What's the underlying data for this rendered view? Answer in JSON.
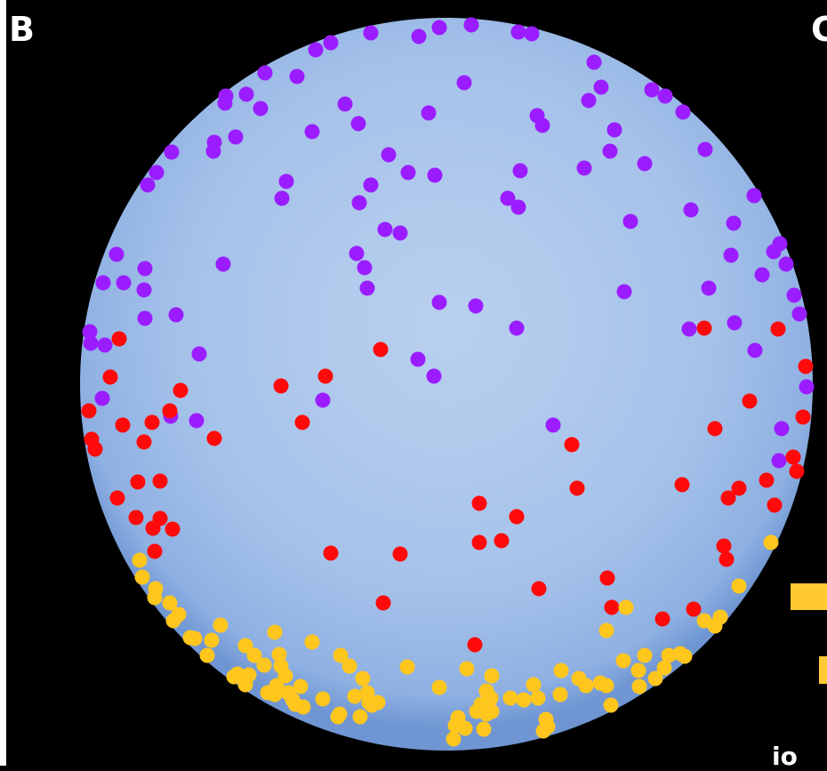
{
  "panel_labels": {
    "left": "B",
    "right": "C"
  },
  "partial_text": "io",
  "colors": {
    "background": "#000000",
    "dish": "#a9c4e9",
    "purple_dots": "#9b1dff",
    "red_dots": "#ff0a0a",
    "yellow_dots": "#ffc61e",
    "legend": "#ffc933"
  }
}
